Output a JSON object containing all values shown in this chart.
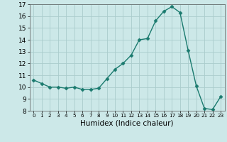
{
  "x": [
    0,
    1,
    2,
    3,
    4,
    5,
    6,
    7,
    8,
    9,
    10,
    11,
    12,
    13,
    14,
    15,
    16,
    17,
    18,
    19,
    20,
    21,
    22,
    23
  ],
  "y": [
    10.6,
    10.3,
    10.0,
    10.0,
    9.9,
    10.0,
    9.8,
    9.8,
    9.9,
    10.7,
    11.5,
    12.0,
    12.7,
    14.0,
    14.1,
    15.6,
    16.4,
    16.8,
    16.3,
    13.1,
    10.1,
    8.2,
    8.1,
    9.2
  ],
  "line_color": "#1a7a6e",
  "marker": "D",
  "marker_size": 2.5,
  "bg_color": "#cce8e8",
  "grid_color": "#aacccc",
  "xlabel": "Humidex (Indice chaleur)",
  "ylim": [
    8,
    17
  ],
  "xlim": [
    -0.5,
    23.5
  ],
  "yticks": [
    8,
    9,
    10,
    11,
    12,
    13,
    14,
    15,
    16,
    17
  ],
  "xticks": [
    0,
    1,
    2,
    3,
    4,
    5,
    6,
    7,
    8,
    9,
    10,
    11,
    12,
    13,
    14,
    15,
    16,
    17,
    18,
    19,
    20,
    21,
    22,
    23
  ],
  "tick_fontsize": 6.5,
  "xlabel_fontsize": 7.5
}
